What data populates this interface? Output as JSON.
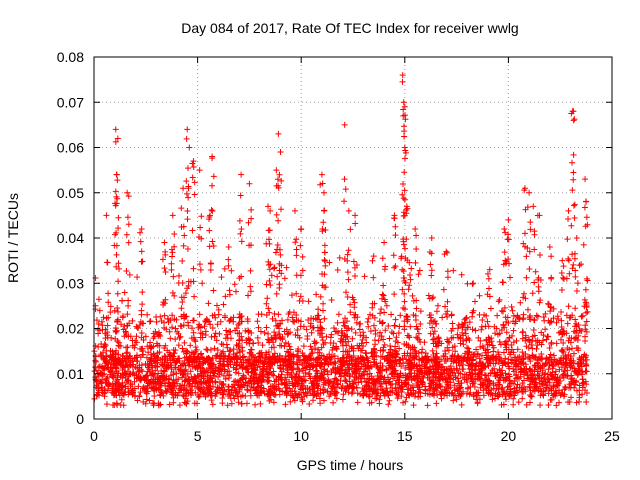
{
  "chart_data": {
    "type": "scatter",
    "title": "Day 084 of 2017, Rate Of TEC Index for receiver wwlg",
    "xlabel": "GPS time / hours",
    "ylabel": "ROTI / TECUs",
    "xlim": [
      0,
      25
    ],
    "ylim": [
      0,
      0.08
    ],
    "xticks": [
      "0",
      "5",
      "10",
      "15",
      "20",
      "25"
    ],
    "yticks": [
      "0",
      "0.01",
      "0.02",
      "0.03",
      "0.04",
      "0.05",
      "0.06",
      "0.07",
      "0.08"
    ],
    "grid": true,
    "marker": "+",
    "color": "#ff0000",
    "description": "Dense ROTI samples over 0-24 h; bulk 0.003-0.03 TECU with spikes up to ~0.076",
    "envelope": {
      "x_range": [
        0,
        23.8
      ],
      "baseline_min": 0.003,
      "dense_max": 0.03
    },
    "peaks": [
      {
        "x": 0.6,
        "y": 0.045
      },
      {
        "x": 1.05,
        "y": 0.064
      },
      {
        "x": 1.15,
        "y": 0.062
      },
      {
        "x": 1.1,
        "y": 0.054
      },
      {
        "x": 1.6,
        "y": 0.05
      },
      {
        "x": 2.3,
        "y": 0.042
      },
      {
        "x": 3.4,
        "y": 0.039
      },
      {
        "x": 3.8,
        "y": 0.045
      },
      {
        "x": 4.3,
        "y": 0.051
      },
      {
        "x": 4.5,
        "y": 0.064
      },
      {
        "x": 4.6,
        "y": 0.06
      },
      {
        "x": 4.8,
        "y": 0.057
      },
      {
        "x": 5.1,
        "y": 0.055
      },
      {
        "x": 5.7,
        "y": 0.058
      },
      {
        "x": 5.6,
        "y": 0.045
      },
      {
        "x": 6.5,
        "y": 0.038
      },
      {
        "x": 7.1,
        "y": 0.054
      },
      {
        "x": 7.5,
        "y": 0.052
      },
      {
        "x": 8.4,
        "y": 0.047
      },
      {
        "x": 8.5,
        "y": 0.046
      },
      {
        "x": 8.8,
        "y": 0.055
      },
      {
        "x": 8.9,
        "y": 0.063
      },
      {
        "x": 9.0,
        "y": 0.059
      },
      {
        "x": 9.7,
        "y": 0.046
      },
      {
        "x": 10.0,
        "y": 0.042
      },
      {
        "x": 11.0,
        "y": 0.054
      },
      {
        "x": 11.1,
        "y": 0.05
      },
      {
        "x": 11.1,
        "y": 0.046
      },
      {
        "x": 12.1,
        "y": 0.065
      },
      {
        "x": 12.3,
        "y": 0.046
      },
      {
        "x": 12.6,
        "y": 0.045
      },
      {
        "x": 13.5,
        "y": 0.036
      },
      {
        "x": 14.0,
        "y": 0.039
      },
      {
        "x": 14.5,
        "y": 0.045
      },
      {
        "x": 14.9,
        "y": 0.076
      },
      {
        "x": 14.95,
        "y": 0.07
      },
      {
        "x": 15.0,
        "y": 0.069
      },
      {
        "x": 15.0,
        "y": 0.06
      },
      {
        "x": 15.1,
        "y": 0.047
      },
      {
        "x": 15.5,
        "y": 0.042
      },
      {
        "x": 16.3,
        "y": 0.04
      },
      {
        "x": 17.0,
        "y": 0.037
      },
      {
        "x": 18.3,
        "y": 0.03
      },
      {
        "x": 19.1,
        "y": 0.033
      },
      {
        "x": 19.8,
        "y": 0.042
      },
      {
        "x": 20.0,
        "y": 0.044
      },
      {
        "x": 20.8,
        "y": 0.051
      },
      {
        "x": 21.0,
        "y": 0.05
      },
      {
        "x": 21.2,
        "y": 0.047
      },
      {
        "x": 21.5,
        "y": 0.045
      },
      {
        "x": 22.0,
        "y": 0.038
      },
      {
        "x": 22.6,
        "y": 0.035
      },
      {
        "x": 22.9,
        "y": 0.046
      },
      {
        "x": 23.1,
        "y": 0.068
      },
      {
        "x": 23.15,
        "y": 0.066
      },
      {
        "x": 23.3,
        "y": 0.04
      },
      {
        "x": 23.7,
        "y": 0.053
      },
      {
        "x": 23.75,
        "y": 0.048
      }
    ]
  }
}
